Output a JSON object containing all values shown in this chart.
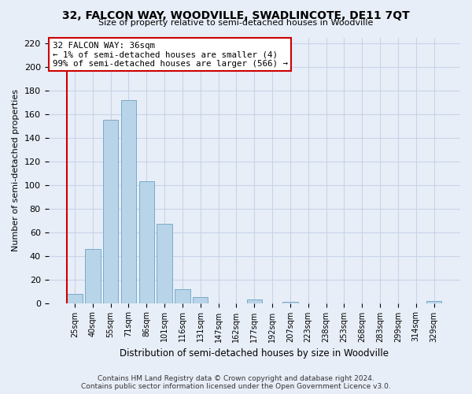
{
  "title": "32, FALCON WAY, WOODVILLE, SWADLINCOTE, DE11 7QT",
  "subtitle": "Size of property relative to semi-detached houses in Woodville",
  "xlabel": "Distribution of semi-detached houses by size in Woodville",
  "ylabel": "Number of semi-detached properties",
  "bar_labels": [
    "25sqm",
    "40sqm",
    "55sqm",
    "71sqm",
    "86sqm",
    "101sqm",
    "116sqm",
    "131sqm",
    "147sqm",
    "162sqm",
    "177sqm",
    "192sqm",
    "207sqm",
    "223sqm",
    "238sqm",
    "253sqm",
    "268sqm",
    "283sqm",
    "299sqm",
    "314sqm",
    "329sqm"
  ],
  "bar_values": [
    8,
    46,
    155,
    172,
    103,
    67,
    12,
    5,
    0,
    0,
    3,
    0,
    1,
    0,
    0,
    0,
    0,
    0,
    0,
    0,
    2
  ],
  "bar_color": "#b8d4e8",
  "bar_edge_color": "#7aaac8",
  "highlight_line_color": "#cc0000",
  "ylim": [
    0,
    225
  ],
  "yticks": [
    0,
    20,
    40,
    60,
    80,
    100,
    120,
    140,
    160,
    180,
    200,
    220
  ],
  "annotation_title": "32 FALCON WAY: 36sqm",
  "annotation_line1": "← 1% of semi-detached houses are smaller (4)",
  "annotation_line2": "99% of semi-detached houses are larger (566) →",
  "footer_line1": "Contains HM Land Registry data © Crown copyright and database right 2024.",
  "footer_line2": "Contains public sector information licensed under the Open Government Licence v3.0.",
  "bg_color": "#e8eef8",
  "grid_color": "#c8d4e8"
}
